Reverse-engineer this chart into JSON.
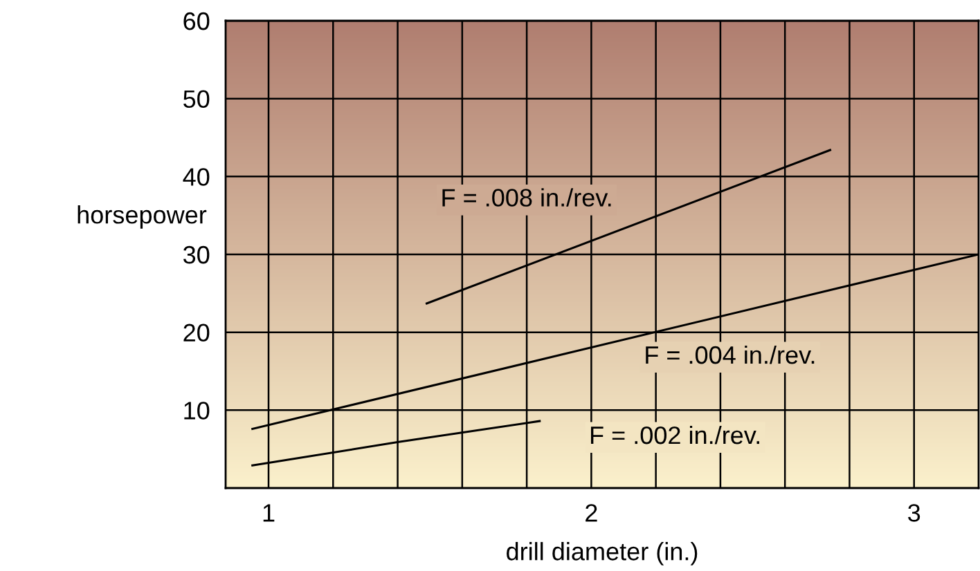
{
  "chart_data": {
    "type": "line",
    "xlabel": "drill diameter (in.)",
    "ylabel": "horsepower",
    "series": [
      {
        "name": "F = .008 in./rev.",
        "color": "#000000",
        "x": [
          1.49,
          2.74
        ],
        "values": [
          23.7,
          43.4
        ]
      },
      {
        "name": "F = .004 in./rev.",
        "color": "#000000",
        "x": [
          0.95,
          3.2
        ],
        "values": [
          7.6,
          30.0
        ]
      },
      {
        "name": "F = .002 in./rev.",
        "color": "#000000",
        "x": [
          0.95,
          1.4,
          1.84
        ],
        "values": [
          2.9,
          5.9,
          8.6
        ]
      }
    ],
    "xlim": [
      0.867,
      3.2
    ],
    "ylim": [
      0,
      60
    ],
    "xticks": [
      1,
      {
        "value": 1.2,
        "label": null
      },
      {
        "value": 1.4,
        "label": null
      },
      {
        "value": 1.6,
        "label": null
      },
      {
        "value": 1.8,
        "label": null
      },
      2,
      {
        "value": 2.2,
        "label": null
      },
      {
        "value": 2.4,
        "label": null
      },
      {
        "value": 2.6,
        "label": null
      },
      {
        "value": 2.8,
        "label": null
      },
      3
    ],
    "yticks": [
      10,
      20,
      30,
      40,
      50,
      60
    ],
    "grid": true,
    "legend": false,
    "marker": "none",
    "line_style": "solid"
  }
}
